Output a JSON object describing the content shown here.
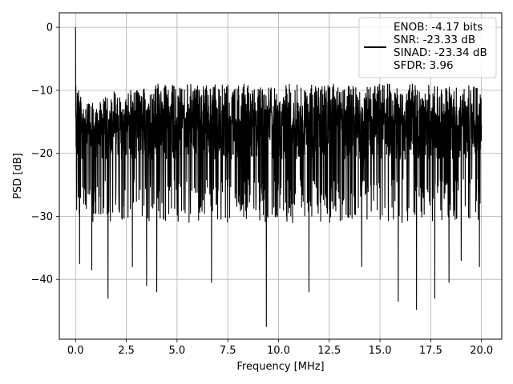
{
  "chart_data": {
    "type": "line",
    "xlabel": "Frequency [MHz]",
    "ylabel": "PSD [dB]",
    "xlim": [
      -0.8,
      21.0
    ],
    "ylim": [
      -49.5,
      2.3
    ],
    "xticks": [
      0.0,
      2.5,
      5.0,
      7.5,
      10.0,
      12.5,
      15.0,
      17.5,
      20.0
    ],
    "xtick_labels": [
      "0.0",
      "2.5",
      "5.0",
      "7.5",
      "10.0",
      "12.5",
      "15.0",
      "17.5",
      "20.0"
    ],
    "yticks": [
      0,
      -10,
      -20,
      -30,
      -40
    ],
    "ytick_labels": [
      "0",
      "−10",
      "−20",
      "−30",
      "−40"
    ],
    "grid": true,
    "legend_position": "top-right",
    "series": [
      {
        "legend_lines": [
          "ENOB: -4.17 bits",
          "SNR: -23.33 dB",
          "SINAD: -23.34 dB",
          "SFDR: 3.96"
        ],
        "color": "#000000",
        "x_range": [
          0.0,
          20.0
        ],
        "envelope_top": [
          [
            0.0,
            0.0
          ],
          [
            0.3,
            -11
          ],
          [
            1.0,
            -12
          ],
          [
            2.0,
            -10
          ],
          [
            3.0,
            -10
          ],
          [
            4.0,
            -9
          ],
          [
            5.0,
            -8
          ],
          [
            5.6,
            -7
          ],
          [
            6.0,
            -6
          ],
          [
            7.0,
            -7
          ],
          [
            8.0,
            -6
          ],
          [
            8.6,
            -5.5
          ],
          [
            10.0,
            -6.5
          ],
          [
            11.0,
            -6.5
          ],
          [
            12.0,
            -5.5
          ],
          [
            13.0,
            -6.5
          ],
          [
            14.0,
            -6.5
          ],
          [
            15.0,
            -6.5
          ],
          [
            16.0,
            -7
          ],
          [
            17.0,
            -7
          ],
          [
            18.0,
            -8
          ],
          [
            19.0,
            -8
          ],
          [
            20.0,
            -10
          ]
        ],
        "noise_floor_median": -17,
        "deep_minima": [
          [
            0.2,
            -37.5
          ],
          [
            0.8,
            -38.5
          ],
          [
            1.6,
            -43.0
          ],
          [
            2.8,
            -38.0
          ],
          [
            3.5,
            -41.0
          ],
          [
            4.0,
            -42.0
          ],
          [
            6.7,
            -40.5
          ],
          [
            9.4,
            -47.5
          ],
          [
            11.5,
            -42.0
          ],
          [
            14.1,
            -38.0
          ],
          [
            15.9,
            -43.5
          ],
          [
            16.8,
            -44.8
          ],
          [
            17.7,
            -43.0
          ],
          [
            18.4,
            -40.5
          ],
          [
            19.0,
            -37.0
          ],
          [
            19.9,
            -38.0
          ]
        ]
      }
    ]
  }
}
